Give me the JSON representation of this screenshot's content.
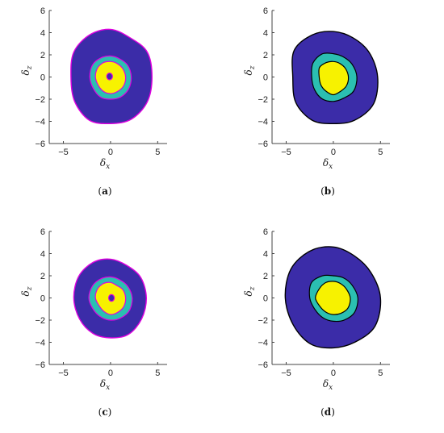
{
  "chart_data": [
    {
      "type": "contour",
      "caption": "(a)",
      "xlabel": "δx",
      "ylabel": "δz",
      "xlim": [
        -6.5,
        6
      ],
      "ylim": [
        -6,
        6
      ],
      "xticks": [
        -5,
        0,
        5
      ],
      "yticks": [
        -6,
        -4,
        -2,
        0,
        2,
        4,
        6
      ],
      "level_colors": [
        "#3b2ca8",
        "#2bbfb1",
        "#f7f200"
      ],
      "outline_color": "#e000e0",
      "levels": [
        {
          "fill": "#3b2ca8",
          "center": [
            0,
            0
          ],
          "radii": [
            4.4,
            4.5,
            4.1,
            4.3,
            4.4,
            4.5,
            4.2,
            4.4,
            4.5,
            4.2,
            4.4,
            4.5
          ]
        },
        {
          "fill": "#2bbfb1",
          "center": [
            0,
            0
          ],
          "radii": [
            2.2,
            2.1,
            1.9,
            1.9,
            2.0,
            2.2,
            2.2,
            2.1,
            2.1,
            2.0,
            2.1,
            2.2
          ]
        },
        {
          "fill": "#f7f200",
          "center": [
            0,
            0
          ],
          "radii": [
            1.6,
            1.5,
            1.4,
            1.4,
            1.5,
            1.6,
            1.6,
            1.5,
            1.5,
            1.5,
            1.5,
            1.6
          ]
        },
        {
          "fill": "#3b2ca8",
          "center": [
            -0.1,
            0.05
          ],
          "radii": [
            0.3,
            0.3,
            0.3,
            0.3,
            0.3,
            0.3,
            0.3,
            0.3,
            0.3,
            0.3,
            0.3,
            0.3
          ]
        }
      ]
    },
    {
      "type": "contour",
      "caption": "(b)",
      "xlabel": "δx",
      "ylabel": "δz",
      "xlim": [
        -6.5,
        6
      ],
      "ylim": [
        -6,
        6
      ],
      "xticks": [
        -5,
        0,
        5
      ],
      "yticks": [
        -6,
        -4,
        -2,
        0,
        2,
        4,
        6
      ],
      "level_colors": [
        "#3b2ca8",
        "#2bbfb1",
        "#f7f200"
      ],
      "outline_color": "#000000",
      "levels": [
        {
          "fill": "#3b2ca8",
          "center": [
            0,
            0
          ],
          "radii": [
            4.7,
            4.4,
            4.1,
            4.1,
            4.4,
            4.8,
            4.3,
            4.6,
            4.5,
            4.2,
            4.5,
            4.9
          ]
        },
        {
          "fill": "#2bbfb1",
          "center": [
            0,
            0
          ],
          "radii": [
            2.5,
            2.3,
            2.1,
            2.1,
            2.4,
            2.5,
            2.3,
            2.3,
            2.3,
            2.2,
            2.2,
            2.5
          ]
        },
        {
          "fill": "#f7f200",
          "center": [
            0,
            0
          ],
          "radii": [
            1.6,
            1.5,
            1.4,
            1.4,
            1.5,
            1.7,
            1.5,
            1.5,
            1.5,
            1.6,
            1.5,
            1.6
          ]
        }
      ]
    },
    {
      "type": "contour",
      "caption": "(c)",
      "xlabel": "δx",
      "ylabel": "δz",
      "xlim": [
        -6.5,
        6
      ],
      "ylim": [
        -6,
        6
      ],
      "xticks": [
        -5,
        0,
        5
      ],
      "yticks": [
        -6,
        -4,
        -2,
        0,
        2,
        4,
        6
      ],
      "level_colors": [
        "#3b2ca8",
        "#2bbfb1",
        "#f7f200"
      ],
      "outline_color": "#e000e0",
      "levels": [
        {
          "fill": "#3b2ca8",
          "center": [
            0,
            0
          ],
          "radii": [
            3.8,
            3.7,
            3.4,
            3.5,
            3.7,
            3.9,
            3.9,
            3.8,
            3.7,
            3.6,
            3.8,
            3.8
          ]
        },
        {
          "fill": "#2bbfb1",
          "center": [
            0,
            0
          ],
          "radii": [
            2.3,
            2.1,
            1.9,
            1.9,
            2.0,
            2.2,
            2.3,
            2.1,
            2.0,
            2.0,
            2.1,
            2.3
          ]
        },
        {
          "fill": "#f7f200",
          "center": [
            0,
            0
          ],
          "radii": [
            1.6,
            1.5,
            1.3,
            1.4,
            1.5,
            1.6,
            1.6,
            1.4,
            1.4,
            1.5,
            1.5,
            1.6
          ]
        },
        {
          "fill": "#3b2ca8",
          "center": [
            0.1,
            0
          ],
          "radii": [
            0.3,
            0.3,
            0.3,
            0.3,
            0.3,
            0.3,
            0.3,
            0.3,
            0.3,
            0.3,
            0.3,
            0.3
          ]
        }
      ]
    },
    {
      "type": "contour",
      "caption": "(d)",
      "xlabel": "δx",
      "ylabel": "δz",
      "xlim": [
        -6.5,
        6
      ],
      "ylim": [
        -6,
        6
      ],
      "xticks": [
        -5,
        0,
        5
      ],
      "yticks": [
        -6,
        -4,
        -2,
        0,
        2,
        4,
        6
      ],
      "level_colors": [
        "#3b2ca8",
        "#2bbfb1",
        "#f7f200"
      ],
      "outline_color": "#000000",
      "levels": [
        {
          "fill": "#3b2ca8",
          "center": [
            0,
            0
          ],
          "radii": [
            5.0,
            4.6,
            4.4,
            4.6,
            4.9,
            5.2,
            5.1,
            4.9,
            4.8,
            4.5,
            4.6,
            5.1
          ]
        },
        {
          "fill": "#2bbfb1",
          "center": [
            0,
            0
          ],
          "radii": [
            2.6,
            2.3,
            2.1,
            2.0,
            2.3,
            2.7,
            2.5,
            2.2,
            2.1,
            2.1,
            2.3,
            2.6
          ]
        },
        {
          "fill": "#f7f200",
          "center": [
            0,
            0
          ],
          "radii": [
            1.8,
            1.6,
            1.5,
            1.5,
            1.6,
            1.7,
            1.9,
            1.6,
            1.5,
            1.5,
            1.6,
            1.8
          ]
        }
      ]
    }
  ]
}
